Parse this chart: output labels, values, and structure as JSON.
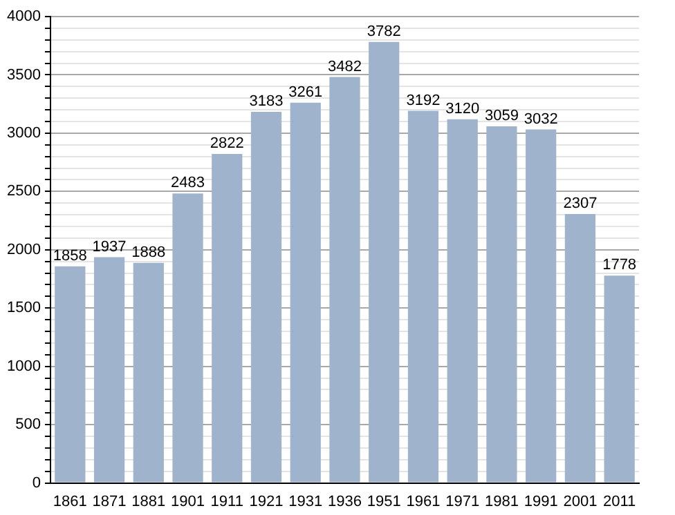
{
  "chart_data": {
    "type": "bar",
    "categories": [
      "1861",
      "1871",
      "1881",
      "1901",
      "1911",
      "1921",
      "1931",
      "1936",
      "1951",
      "1961",
      "1971",
      "1981",
      "1991",
      "2001",
      "2011"
    ],
    "values": [
      1858,
      1937,
      1888,
      2483,
      2822,
      3183,
      3261,
      3482,
      3782,
      3192,
      3120,
      3059,
      3032,
      2307,
      1778
    ],
    "color": "#9fb4cc",
    "ylim": [
      0,
      4000
    ],
    "yticks": [
      0,
      {
        "value": 100,
        "label": null
      },
      {
        "value": 200,
        "label": null
      },
      {
        "value": 300,
        "label": null
      },
      {
        "value": 400,
        "label": null
      },
      500,
      {
        "value": 600,
        "label": null
      },
      {
        "value": 700,
        "label": null
      },
      {
        "value": 800,
        "label": null
      },
      {
        "value": 900,
        "label": null
      },
      1000,
      {
        "value": 1100,
        "label": null
      },
      {
        "value": 1200,
        "label": null
      },
      {
        "value": 1300,
        "label": null
      },
      {
        "value": 1400,
        "label": null
      },
      1500,
      {
        "value": 1600,
        "label": null
      },
      {
        "value": 1700,
        "label": null
      },
      {
        "value": 1800,
        "label": null
      },
      {
        "value": 1900,
        "label": null
      },
      2000,
      {
        "value": 2100,
        "label": null
      },
      {
        "value": 2200,
        "label": null
      },
      {
        "value": 2300,
        "label": null
      },
      {
        "value": 2400,
        "label": null
      },
      2500,
      {
        "value": 2600,
        "label": null
      },
      {
        "value": 2700,
        "label": null
      },
      {
        "value": 2800,
        "label": null
      },
      {
        "value": 2900,
        "label": null
      },
      3000,
      {
        "value": 3100,
        "label": null
      },
      {
        "value": 3200,
        "label": null
      },
      {
        "value": 3300,
        "label": null
      },
      {
        "value": 3400,
        "label": null
      },
      3500,
      {
        "value": 3600,
        "label": null
      },
      {
        "value": 3700,
        "label": null
      },
      {
        "value": 3800,
        "label": null
      },
      {
        "value": 3900,
        "label": null
      },
      4000
    ],
    "grid": "y",
    "data_labels": true
  }
}
